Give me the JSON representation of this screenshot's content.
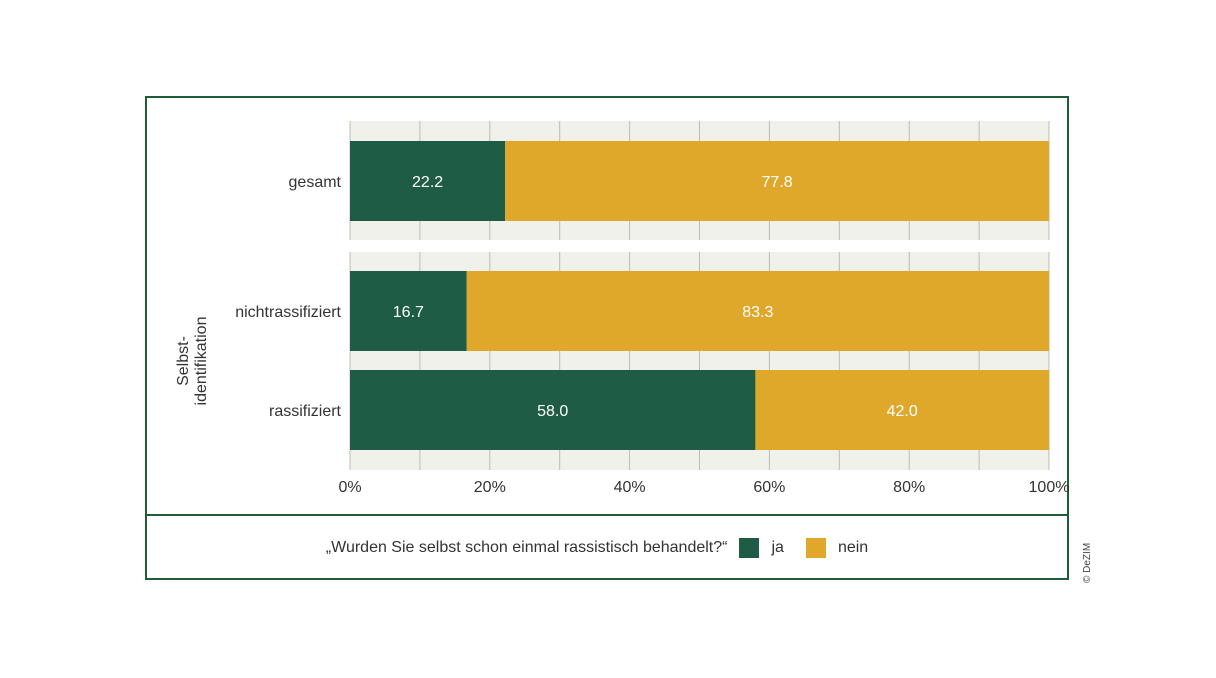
{
  "chart_data": {
    "type": "bar",
    "orientation": "horizontal",
    "stacked": true,
    "group_label": "Selbst-\nidentifikation",
    "categories": [
      "gesamt",
      "nichtrassifiziert",
      "rassifiziert"
    ],
    "series": [
      {
        "name": "ja",
        "values": [
          22.2,
          16.7,
          58.0
        ],
        "color": "#1f5c45"
      },
      {
        "name": "nein",
        "values": [
          77.8,
          83.3,
          42.0
        ],
        "color": "#e0a82b"
      }
    ],
    "xlim": [
      0,
      100
    ],
    "xticks": [
      "0%",
      "20%",
      "40%",
      "60%",
      "80%",
      "100%"
    ],
    "grid": true,
    "legend_position": "bottom"
  },
  "legend": {
    "question": "„Wurden Sie selbst schon einmal rassistisch behandelt?“",
    "ja": "ja",
    "nein": "nein"
  },
  "credit": "© DeZIM",
  "colors": {
    "frame": "#1f5c3a",
    "panel_bg": "#f1f1ec",
    "grid": "#bcbcb4"
  }
}
